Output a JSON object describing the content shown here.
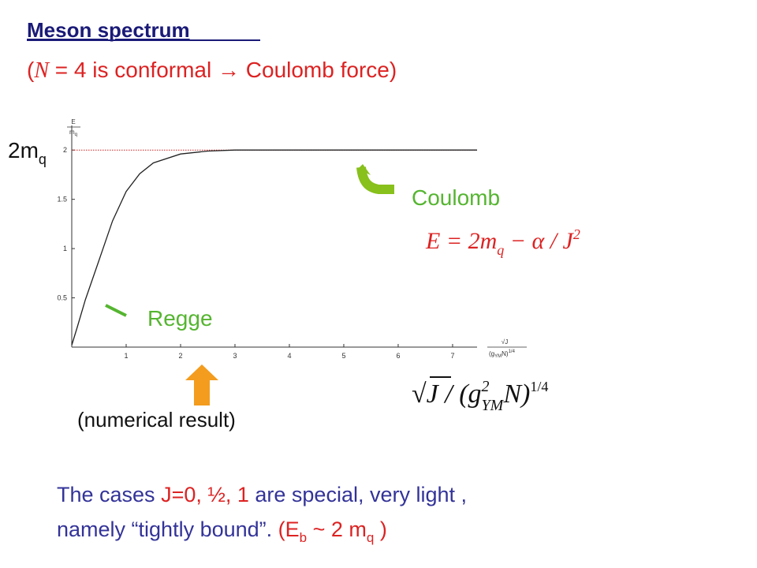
{
  "slide": {
    "title": "Meson spectrum",
    "subtitle": [
      "(",
      "N",
      " = 4 is conformal → Coulomb force)"
    ],
    "coulomb": "Coulomb",
    "coulomb_formula": [
      "E = 2m",
      "q",
      " − α / J",
      "2"
    ],
    "regge": "Regge",
    "numerical": "(numerical result)",
    "x_formula": [
      "√",
      "J",
      " / (g",
      "2",
      "YM",
      "N)",
      "1/4"
    ],
    "footer": {
      "line1": [
        "The cases ",
        "J=0, ½, 1",
        " are special, very light ,"
      ],
      "line2": [
        "namely “tightly bound”. ",
        "(E",
        "b",
        " ~ 2 m",
        "q",
        " )"
      ]
    }
  },
  "chart_data": {
    "type": "line",
    "y_label": [
      "E",
      "m",
      "q"
    ],
    "x_label": [
      "√J",
      "(g",
      "YM",
      "N)",
      "1/4"
    ],
    "level_label": [
      "2m",
      "q"
    ],
    "x": [
      0,
      0.1,
      0.25,
      0.5,
      0.75,
      1,
      1.25,
      1.5,
      2,
      2.5,
      3,
      4,
      5,
      6,
      7,
      7.45
    ],
    "series": [
      {
        "color": "#222222",
        "values": [
          0.02,
          0.2,
          0.48,
          0.88,
          1.28,
          1.58,
          1.76,
          1.87,
          1.96,
          1.99,
          2.0,
          2.0,
          2.0,
          2.0,
          2.0,
          2.0
        ]
      }
    ],
    "reference_line": {
      "value": 2,
      "color": "#cc2222"
    },
    "xlim": [
      0,
      7.45
    ],
    "ylim": [
      0,
      2.25
    ],
    "xticks": [
      1,
      2,
      3,
      4,
      5,
      6,
      7
    ],
    "yticks": [
      0.5,
      1,
      1.5,
      2
    ]
  }
}
